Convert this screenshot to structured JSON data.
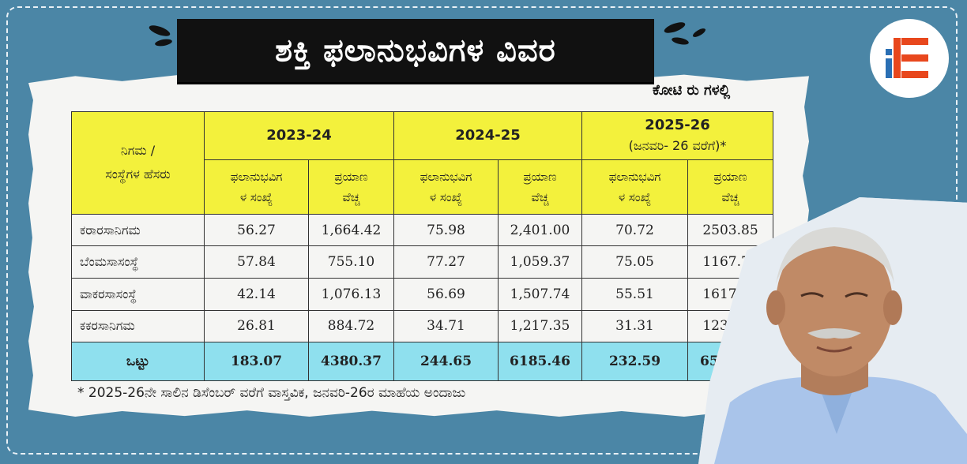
{
  "header": {
    "title": "ಶಕ್ತಿ ಫಲಾನುಭವಿಗಳ ವಿವರ",
    "unit": "ಕೋಟಿ ರು ಗಳಲ್ಲಿ"
  },
  "colors": {
    "background": "#4b86a6",
    "header_yellow": "#f3f13c",
    "total_cyan": "#8fe0ee",
    "logo_orange": "#e8471d",
    "logo_blue": "#2a6fb4"
  },
  "table": {
    "corner_header": {
      "line1": "ನಿಗಮ /",
      "line2": "ಸಂಸ್ಥೆಗಳ ಹೆಸರು"
    },
    "years": [
      {
        "label": "2023-24",
        "note": ""
      },
      {
        "label": "2024-25",
        "note": ""
      },
      {
        "label": "2025-26",
        "note": "(ಜನವರಿ- 26 ವರೆಗೆ)*"
      }
    ],
    "sub_headers": {
      "beneficiaries": {
        "line1": "ಫಲಾನುಭವಿಗ",
        "line2": "ಳ ಸಂಖ್ಯೆ"
      },
      "expense": {
        "line1": "ಪ್ರಯಾಣ",
        "line2": "ವೆಚ್ಚ"
      }
    },
    "rows": [
      {
        "name": "ಕರಾರಸಾನಿಗಮ",
        "values": [
          "56.27",
          "1,664.42",
          "75.98",
          "2,401.00",
          "70.72",
          "2503.85"
        ]
      },
      {
        "name": "ಬೆಂಮಸಾಸಂಸ್ಥೆ",
        "values": [
          "57.84",
          "755.10",
          "77.27",
          "1,059.37",
          "75.05",
          "1167.76"
        ]
      },
      {
        "name": "ವಾಕರಸಾಸಂಸ್ಥೆ",
        "values": [
          "42.14",
          "1,076.13",
          "56.69",
          "1,507.74",
          "55.51",
          "1617.23"
        ]
      },
      {
        "name": "ಕಕರಸಾನಿಗಮ",
        "values": [
          "26.81",
          "884.72",
          "34.71",
          "1,217.35",
          "31.31",
          "1233.67"
        ]
      }
    ],
    "total": {
      "name": "ಒಟ್ಟು",
      "values": [
        "183.07",
        "4380.37",
        "244.65",
        "6185.46",
        "232.59",
        "6522.51"
      ]
    }
  },
  "footnote": "* 2025-26ನೇ ಸಾಲಿನ ಡಿಸೆಂಬರ್ ವರೆಗೆ ವಾಸ್ತವಿಕ, ಜನವರಿ-26ರ ಮಾಹೆಯ ಅಂದಾಜು",
  "icons": {
    "logo": "ie-logo-icon",
    "portrait": "person-photo"
  }
}
